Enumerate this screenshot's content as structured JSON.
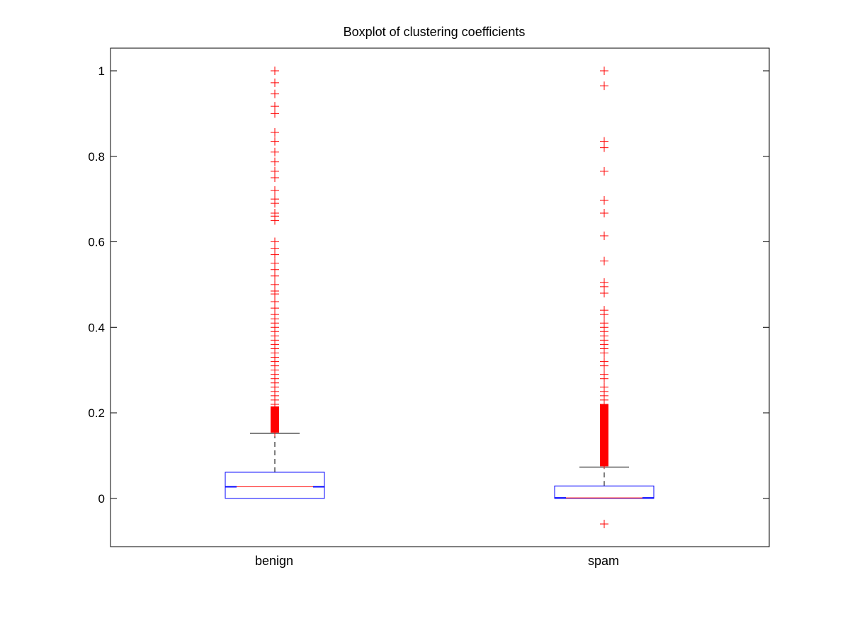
{
  "chart_data": {
    "type": "boxplot",
    "title": "Boxplot of clustering coefficients",
    "xlabel": "",
    "ylabel": "",
    "ylim": [
      -0.113,
      1.053
    ],
    "yticks": [
      0,
      0.2,
      0.4,
      0.6,
      0.8,
      1
    ],
    "ytick_labels": [
      "0",
      "0.2",
      "0.4",
      "0.6",
      "0.8",
      "1"
    ],
    "notched": true,
    "grid": false,
    "colors": {
      "box": "#0000ff",
      "median": "#ff0000",
      "outlier": "#ff0000",
      "whisker": "#000000"
    },
    "categories": [
      "benign",
      "spam"
    ],
    "boxes": [
      {
        "category": "benign",
        "whisker_low": 0,
        "q1": 0,
        "median": 0.027,
        "q3": 0.061,
        "whisker_high": 0.152,
        "outliers": [
          1.0,
          0.972,
          0.946,
          0.917,
          0.9,
          0.856,
          0.835,
          0.81,
          0.787,
          0.765,
          0.75,
          0.72,
          0.7,
          0.69,
          0.667,
          0.66,
          0.65,
          0.6,
          0.585,
          0.57,
          0.55,
          0.535,
          0.52,
          0.5,
          0.485,
          0.478,
          0.46,
          0.445,
          0.43,
          0.42,
          0.41,
          0.4,
          0.39,
          0.38,
          0.37,
          0.36,
          0.35,
          0.34,
          0.33,
          0.32,
          0.31,
          0.3,
          0.29,
          0.28,
          0.27,
          0.26,
          0.25,
          0.24,
          0.23,
          0.22,
          0.21,
          0.2,
          0.19,
          0.18,
          0.17,
          0.16,
          0.155
        ]
      },
      {
        "category": "spam",
        "whisker_low": 0,
        "q1": 0,
        "median": 0.001,
        "q3": 0.029,
        "whisker_high": 0.073,
        "outliers": [
          1.0,
          0.965,
          0.835,
          0.82,
          0.765,
          0.697,
          0.667,
          0.614,
          0.555,
          0.505,
          0.495,
          0.48,
          0.44,
          0.43,
          0.41,
          0.4,
          0.39,
          0.38,
          0.37,
          0.36,
          0.35,
          0.34,
          0.32,
          0.31,
          0.29,
          0.28,
          0.26,
          0.25,
          0.24,
          0.23,
          0.22,
          0.21,
          0.2,
          0.19,
          0.18,
          0.17,
          0.16,
          0.15,
          0.14,
          0.13,
          0.12,
          0.11,
          0.1,
          0.09,
          0.08,
          -0.06
        ]
      }
    ]
  }
}
